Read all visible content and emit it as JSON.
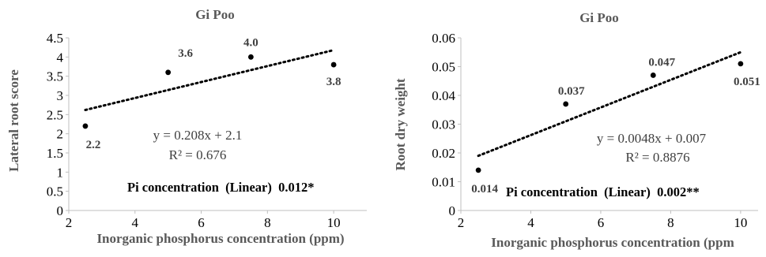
{
  "chart_data": [
    {
      "type": "scatter",
      "title": "Gi Poo",
      "xlabel": "Inorganic  phosphorus  concentration  (ppm)",
      "ylabel": "Lateral root score",
      "xlim": [
        2,
        11
      ],
      "ylim": [
        0,
        4.5
      ],
      "xticks": [
        "2",
        "4",
        "6",
        "8",
        "10"
      ],
      "yticks": [
        "0",
        "0.5",
        "1",
        "1.5",
        "2",
        "2.5",
        "3",
        "3.5",
        "4",
        "4.5"
      ],
      "grid": false,
      "x": [
        2.5,
        5,
        7.5,
        10
      ],
      "y": [
        2.2,
        3.6,
        4.0,
        3.8
      ],
      "data_labels": [
        "2.2",
        "3.6",
        "4.0",
        "3.8"
      ],
      "trendline": {
        "type": "linear",
        "slope": 0.208,
        "intercept": 2.1
      },
      "equation": "y = 0.208x + 2.1",
      "r_squared": "R² = 0.676",
      "annotation": "Pi concentration  (Linear)  0.012*"
    },
    {
      "type": "scatter",
      "title": "Gi Poo",
      "xlabel": "Inorganic  phosphorus  concentration  (ppm",
      "ylabel": "Root dry  weight",
      "xlim": [
        2,
        10.5
      ],
      "ylim": [
        0,
        0.06
      ],
      "xticks": [
        "2",
        "4",
        "6",
        "8",
        "10"
      ],
      "yticks": [
        "0",
        "0.01",
        "0.02",
        "0.03",
        "0.04",
        "0.05",
        "0.06"
      ],
      "grid": false,
      "x": [
        2.5,
        5,
        7.5,
        10
      ],
      "y": [
        0.014,
        0.037,
        0.047,
        0.051
      ],
      "data_labels": [
        "0.014",
        "0.037",
        "0.047",
        "0.051"
      ],
      "trendline": {
        "type": "linear",
        "slope": 0.0048,
        "intercept": 0.007
      },
      "equation": "y = 0.0048x + 0.007",
      "r_squared": "R² = 0.8876",
      "annotation": "Pi concentration  (Linear)  0.002**"
    }
  ]
}
